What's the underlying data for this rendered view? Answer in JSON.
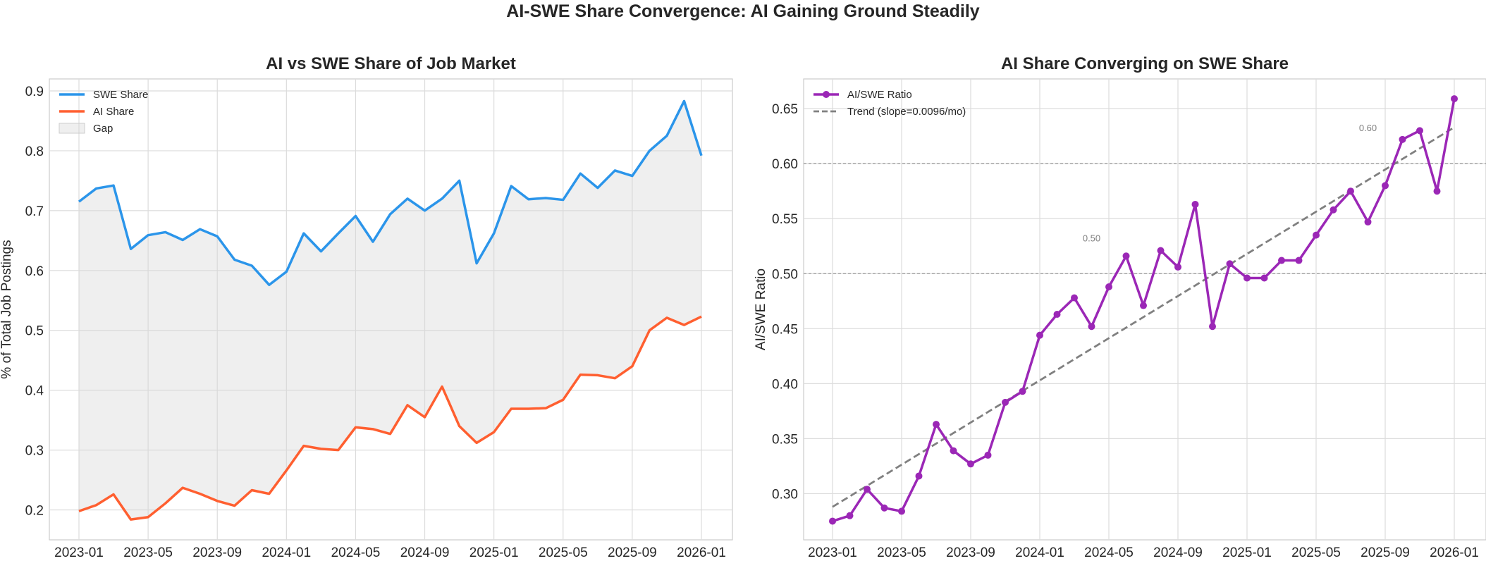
{
  "suptitle": "AI-SWE Share Convergence: AI Gaining Ground Steadily",
  "chart_data": [
    {
      "type": "line",
      "title": "AI vs SWE Share of Job Market",
      "xlabel": "",
      "ylabel": "% of Total Job Postings",
      "x": [
        "2023-01",
        "2023-02",
        "2023-03",
        "2023-04",
        "2023-05",
        "2023-06",
        "2023-07",
        "2023-08",
        "2023-09",
        "2023-10",
        "2023-11",
        "2023-12",
        "2024-01",
        "2024-02",
        "2024-03",
        "2024-04",
        "2024-05",
        "2024-06",
        "2024-07",
        "2024-08",
        "2024-09",
        "2024-10",
        "2024-11",
        "2024-12",
        "2025-01",
        "2025-02",
        "2025-03",
        "2025-04",
        "2025-05",
        "2025-06",
        "2025-07",
        "2025-08",
        "2025-09",
        "2025-10",
        "2025-11",
        "2025-12",
        "2026-01"
      ],
      "xticks": [
        "2023-01",
        "2023-05",
        "2023-09",
        "2024-01",
        "2024-05",
        "2024-09",
        "2025-01",
        "2025-05",
        "2025-09",
        "2026-01"
      ],
      "ylim": [
        0.15,
        0.92
      ],
      "yticks": [
        "0.2",
        "0.3",
        "0.4",
        "0.5",
        "0.6",
        "0.7",
        "0.8",
        "0.9"
      ],
      "grid": true,
      "legend_position": "top-left",
      "series": [
        {
          "name": "SWE Share",
          "color": "#2b95ea",
          "values": [
            0.715,
            0.737,
            0.742,
            0.636,
            0.659,
            0.664,
            0.651,
            0.669,
            0.657,
            0.618,
            0.608,
            0.576,
            0.598,
            0.662,
            0.632,
            0.662,
            0.691,
            0.648,
            0.694,
            0.72,
            0.7,
            0.72,
            0.75,
            0.612,
            0.662,
            0.741,
            0.719,
            0.721,
            0.718,
            0.762,
            0.738,
            0.767,
            0.758,
            0.8,
            0.825,
            0.883,
            0.792
          ]
        },
        {
          "name": "AI Share",
          "color": "#ff5f30",
          "values": [
            0.198,
            0.208,
            0.226,
            0.184,
            0.188,
            0.211,
            0.237,
            0.227,
            0.215,
            0.207,
            0.233,
            0.227,
            0.266,
            0.307,
            0.302,
            0.3,
            0.338,
            0.335,
            0.327,
            0.375,
            0.355,
            0.406,
            0.34,
            0.312,
            0.33,
            0.369,
            0.369,
            0.37,
            0.384,
            0.426,
            0.425,
            0.42,
            0.44,
            0.5,
            0.521,
            0.509,
            0.523
          ]
        }
      ],
      "fill_label": "Gap",
      "fill_color": "#d6d6d6"
    },
    {
      "type": "line",
      "title": "AI Share Converging on SWE Share",
      "xlabel": "",
      "ylabel": "AI/SWE Ratio",
      "x": [
        "2023-01",
        "2023-02",
        "2023-03",
        "2023-04",
        "2023-05",
        "2023-06",
        "2023-07",
        "2023-08",
        "2023-09",
        "2023-10",
        "2023-11",
        "2023-12",
        "2024-01",
        "2024-02",
        "2024-03",
        "2024-04",
        "2024-05",
        "2024-06",
        "2024-07",
        "2024-08",
        "2024-09",
        "2024-10",
        "2024-11",
        "2024-12",
        "2025-01",
        "2025-02",
        "2025-03",
        "2025-04",
        "2025-05",
        "2025-06",
        "2025-07",
        "2025-08",
        "2025-09",
        "2025-10",
        "2025-11",
        "2025-12",
        "2026-01"
      ],
      "xticks": [
        "2023-01",
        "2023-05",
        "2023-09",
        "2024-01",
        "2024-05",
        "2024-09",
        "2025-01",
        "2025-05",
        "2025-09",
        "2026-01"
      ],
      "ylim": [
        0.258,
        0.677
      ],
      "yticks": [
        "0.30",
        "0.35",
        "0.40",
        "0.45",
        "0.50",
        "0.55",
        "0.60",
        "0.65"
      ],
      "grid": true,
      "legend_position": "top-left",
      "series": [
        {
          "name": "AI/SWE Ratio",
          "color": "#9b27b6",
          "values": [
            0.275,
            0.28,
            0.304,
            0.287,
            0.284,
            0.316,
            0.363,
            0.339,
            0.327,
            0.335,
            0.383,
            0.393,
            0.444,
            0.463,
            0.478,
            0.452,
            0.488,
            0.516,
            0.471,
            0.521,
            0.506,
            0.563,
            0.452,
            0.509,
            0.496,
            0.496,
            0.512,
            0.512,
            0.535,
            0.558,
            0.575,
            0.547,
            0.58,
            0.622,
            0.63,
            0.575,
            0.659
          ]
        }
      ],
      "trend": {
        "name": "Trend (slope=0.0096/mo)",
        "color": "#808080",
        "start": 0.288,
        "end": 0.633
      },
      "reference_lines": [
        {
          "value": 0.5,
          "label": "0.50",
          "label_at": "2024-04"
        },
        {
          "value": 0.6,
          "label": "0.60",
          "label_at": "2025-08"
        }
      ]
    }
  ]
}
